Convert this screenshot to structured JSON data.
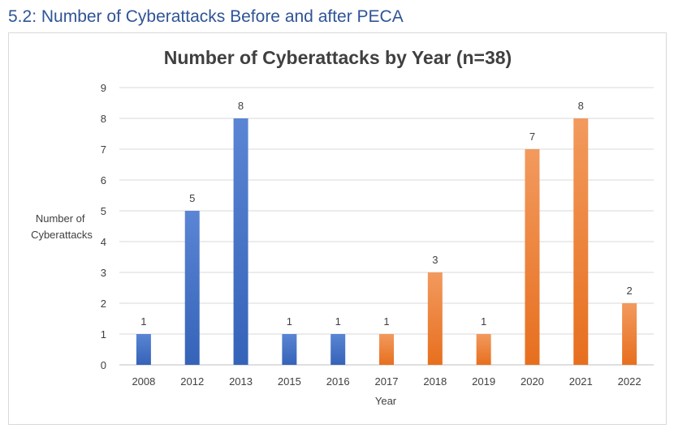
{
  "heading": "5.2: Number of Cyberattacks Before and after PECA",
  "chart_data": {
    "type": "bar",
    "title": "Number of Cyberattacks by Year (n=38)",
    "xlabel": "Year",
    "ylabel": [
      "Number of",
      "Cyberattacks"
    ],
    "ylim": [
      0,
      9
    ],
    "yticks": [
      0,
      1,
      2,
      3,
      4,
      5,
      6,
      7,
      8,
      9
    ],
    "grid": true,
    "categories": [
      "2008",
      "2012",
      "2013",
      "2015",
      "2016",
      "2017",
      "2018",
      "2019",
      "2020",
      "2021",
      "2022"
    ],
    "values": [
      1,
      5,
      8,
      1,
      1,
      1,
      3,
      1,
      7,
      8,
      2
    ],
    "bar_colors": [
      "#4472c4",
      "#4472c4",
      "#4472c4",
      "#4472c4",
      "#4472c4",
      "#ed7d31",
      "#ed7d31",
      "#ed7d31",
      "#ed7d31",
      "#ed7d31",
      "#ed7d31"
    ],
    "data_labels": true
  }
}
